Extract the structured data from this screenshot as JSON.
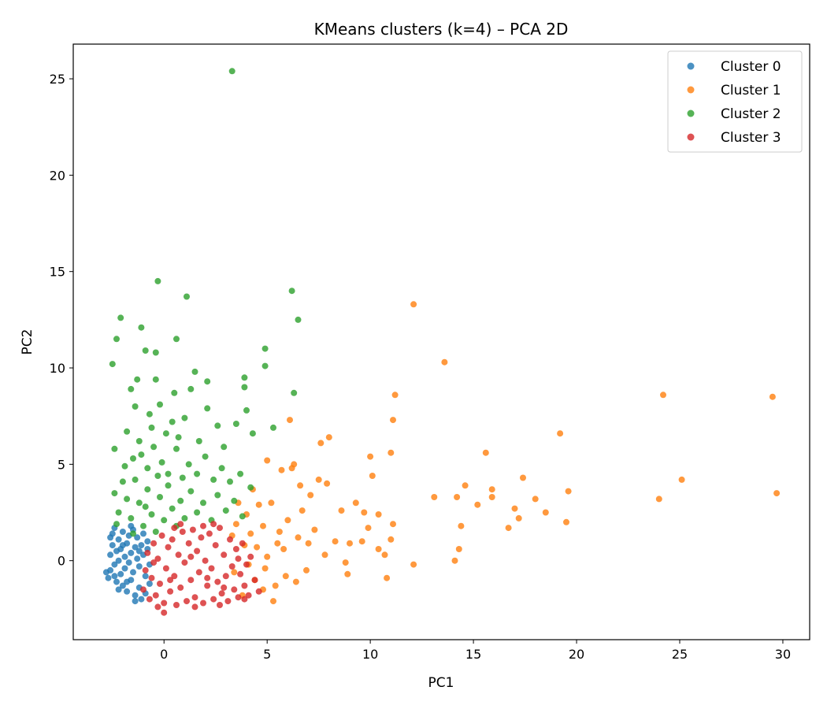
{
  "chart_data": {
    "type": "scatter",
    "title": "KMeans clusters (k=4) – PCA 2D",
    "xlabel": "PC1",
    "ylabel": "PC2",
    "xlim": [
      -4.4,
      31.3
    ],
    "ylim": [
      -4.1,
      26.8
    ],
    "xticks": [
      0,
      5,
      10,
      15,
      20,
      25,
      30
    ],
    "yticks": [
      0,
      5,
      10,
      15,
      20,
      25
    ],
    "grid": false,
    "legend_position": "top-right",
    "series": [
      {
        "name": "Cluster 0",
        "color": "#1f77b4",
        "points": [
          [
            -2.7,
            -0.9
          ],
          [
            -2.6,
            -0.5
          ],
          [
            -2.6,
            0.3
          ],
          [
            -2.5,
            0.8
          ],
          [
            -2.5,
            1.4
          ],
          [
            -2.4,
            1.7
          ],
          [
            -2.4,
            -0.2
          ],
          [
            -2.3,
            0.5
          ],
          [
            -2.3,
            -1.1
          ],
          [
            -2.2,
            1.1
          ],
          [
            -2.2,
            0.0
          ],
          [
            -2.1,
            -0.7
          ],
          [
            -2.1,
            0.6
          ],
          [
            -2.0,
            1.5
          ],
          [
            -2.0,
            -1.3
          ],
          [
            -1.9,
            0.2
          ],
          [
            -1.9,
            -0.4
          ],
          [
            -1.8,
            0.9
          ],
          [
            -1.8,
            -1.6
          ],
          [
            -1.7,
            1.3
          ],
          [
            -1.7,
            -0.1
          ],
          [
            -1.6,
            0.4
          ],
          [
            -1.6,
            -1.0
          ],
          [
            -1.5,
            1.6
          ],
          [
            -1.5,
            -0.6
          ],
          [
            -1.4,
            0.7
          ],
          [
            -1.4,
            -1.8
          ],
          [
            -1.3,
            0.1
          ],
          [
            -1.3,
            1.2
          ],
          [
            -1.2,
            -0.3
          ],
          [
            -1.2,
            -1.4
          ],
          [
            -1.1,
            0.8
          ],
          [
            -1.1,
            -2.0
          ],
          [
            -1.0,
            1.4
          ],
          [
            -1.0,
            0.3
          ],
          [
            -0.9,
            -0.8
          ],
          [
            -0.9,
            -1.7
          ],
          [
            -0.8,
            0.6
          ],
          [
            -0.8,
            1.0
          ],
          [
            -0.7,
            -0.2
          ],
          [
            -0.7,
            -1.2
          ],
          [
            -2.8,
            -0.6
          ],
          [
            -2.6,
            1.2
          ],
          [
            -2.4,
            -0.8
          ],
          [
            -2.2,
            -1.5
          ],
          [
            -2.0,
            0.8
          ],
          [
            -1.8,
            -1.1
          ],
          [
            -1.6,
            1.8
          ],
          [
            -1.4,
            -2.1
          ],
          [
            -1.2,
            0.5
          ]
        ]
      },
      {
        "name": "Cluster 1",
        "color": "#ff7f0e",
        "points": [
          [
            29.5,
            8.5
          ],
          [
            29.7,
            3.5
          ],
          [
            25.1,
            4.2
          ],
          [
            24.2,
            8.6
          ],
          [
            24.0,
            3.2
          ],
          [
            19.6,
            3.6
          ],
          [
            19.5,
            2.0
          ],
          [
            19.2,
            6.6
          ],
          [
            18.5,
            2.5
          ],
          [
            18.0,
            3.2
          ],
          [
            17.4,
            4.3
          ],
          [
            17.2,
            2.2
          ],
          [
            17.0,
            2.7
          ],
          [
            16.7,
            1.7
          ],
          [
            15.9,
            3.7
          ],
          [
            15.9,
            3.3
          ],
          [
            15.6,
            5.6
          ],
          [
            15.2,
            2.9
          ],
          [
            14.6,
            3.9
          ],
          [
            14.4,
            1.8
          ],
          [
            14.3,
            0.6
          ],
          [
            14.2,
            3.3
          ],
          [
            14.1,
            0.0
          ],
          [
            13.6,
            10.3
          ],
          [
            13.1,
            3.3
          ],
          [
            12.1,
            13.3
          ],
          [
            12.1,
            -0.2
          ],
          [
            11.2,
            8.6
          ],
          [
            11.1,
            7.3
          ],
          [
            11.1,
            1.9
          ],
          [
            11.0,
            5.6
          ],
          [
            11.0,
            1.1
          ],
          [
            10.8,
            -0.9
          ],
          [
            10.7,
            0.3
          ],
          [
            10.4,
            2.4
          ],
          [
            10.4,
            0.6
          ],
          [
            10.1,
            4.4
          ],
          [
            10.0,
            5.4
          ],
          [
            9.7,
            2.5
          ],
          [
            9.6,
            1.0
          ],
          [
            9.3,
            3.0
          ],
          [
            9.0,
            0.9
          ],
          [
            8.8,
            -0.1
          ],
          [
            8.6,
            2.6
          ],
          [
            8.3,
            1.0
          ],
          [
            8.0,
            6.4
          ],
          [
            7.9,
            4.0
          ],
          [
            7.6,
            6.1
          ],
          [
            7.5,
            4.2
          ],
          [
            7.3,
            1.6
          ],
          [
            7.1,
            3.4
          ],
          [
            7.0,
            0.9
          ],
          [
            6.9,
            -0.5
          ],
          [
            6.7,
            2.6
          ],
          [
            6.6,
            3.9
          ],
          [
            6.5,
            1.2
          ],
          [
            6.3,
            5.0
          ],
          [
            6.2,
            4.8
          ],
          [
            6.1,
            7.3
          ],
          [
            6.0,
            2.1
          ],
          [
            5.9,
            -0.8
          ],
          [
            5.8,
            0.6
          ],
          [
            5.7,
            4.7
          ],
          [
            5.6,
            1.5
          ],
          [
            5.4,
            -1.3
          ],
          [
            5.3,
            -2.1
          ],
          [
            5.2,
            3.0
          ],
          [
            5.0,
            5.2
          ],
          [
            5.0,
            0.2
          ],
          [
            4.9,
            -0.4
          ],
          [
            4.8,
            1.8
          ],
          [
            4.8,
            -1.5
          ],
          [
            4.6,
            2.9
          ],
          [
            4.5,
            0.7
          ],
          [
            4.4,
            -1.0
          ],
          [
            4.3,
            3.7
          ],
          [
            4.2,
            1.4
          ],
          [
            4.1,
            -0.2
          ],
          [
            4.0,
            2.4
          ],
          [
            3.9,
            0.8
          ],
          [
            3.8,
            -1.8
          ],
          [
            3.6,
            3.0
          ],
          [
            3.5,
            1.9
          ],
          [
            3.4,
            -0.6
          ],
          [
            3.3,
            1.3
          ],
          [
            7.8,
            0.3
          ],
          [
            8.9,
            -0.7
          ],
          [
            9.9,
            1.7
          ],
          [
            6.4,
            -1.1
          ],
          [
            5.5,
            0.9
          ]
        ]
      },
      {
        "name": "Cluster 2",
        "color": "#2ca02c",
        "points": [
          [
            3.3,
            25.4
          ],
          [
            -0.3,
            14.5
          ],
          [
            1.1,
            13.7
          ],
          [
            6.2,
            14.0
          ],
          [
            -2.1,
            12.6
          ],
          [
            -1.1,
            12.1
          ],
          [
            6.5,
            12.5
          ],
          [
            -2.3,
            11.5
          ],
          [
            0.6,
            11.5
          ],
          [
            -2.5,
            10.2
          ],
          [
            -0.9,
            10.9
          ],
          [
            -0.4,
            10.8
          ],
          [
            4.9,
            11.0
          ],
          [
            4.9,
            10.1
          ],
          [
            1.5,
            9.8
          ],
          [
            2.1,
            9.3
          ],
          [
            3.9,
            9.5
          ],
          [
            3.9,
            9.0
          ],
          [
            -1.3,
            9.4
          ],
          [
            -1.6,
            8.9
          ],
          [
            -0.4,
            9.4
          ],
          [
            0.5,
            8.7
          ],
          [
            1.3,
            8.9
          ],
          [
            6.3,
            8.7
          ],
          [
            -1.4,
            8.0
          ],
          [
            -0.2,
            8.1
          ],
          [
            2.1,
            7.9
          ],
          [
            4.0,
            7.8
          ],
          [
            -1.8,
            6.7
          ],
          [
            -0.7,
            7.6
          ],
          [
            0.4,
            7.2
          ],
          [
            1.0,
            7.4
          ],
          [
            2.6,
            7.0
          ],
          [
            3.5,
            7.1
          ],
          [
            4.3,
            6.6
          ],
          [
            5.3,
            6.9
          ],
          [
            -2.4,
            5.8
          ],
          [
            -1.9,
            4.9
          ],
          [
            -1.5,
            5.3
          ],
          [
            -1.2,
            6.2
          ],
          [
            -0.8,
            4.8
          ],
          [
            -0.5,
            5.9
          ],
          [
            -0.1,
            5.1
          ],
          [
            0.2,
            4.5
          ],
          [
            0.6,
            5.8
          ],
          [
            0.9,
            4.3
          ],
          [
            1.2,
            5.0
          ],
          [
            1.6,
            4.5
          ],
          [
            2.0,
            5.4
          ],
          [
            2.4,
            4.2
          ],
          [
            2.8,
            4.8
          ],
          [
            3.2,
            4.1
          ],
          [
            3.7,
            4.5
          ],
          [
            4.2,
            3.8
          ],
          [
            -2.4,
            3.5
          ],
          [
            -2.2,
            2.5
          ],
          [
            -2.0,
            4.1
          ],
          [
            -1.8,
            3.2
          ],
          [
            -1.6,
            2.2
          ],
          [
            -1.4,
            4.2
          ],
          [
            -1.2,
            3.0
          ],
          [
            -1.0,
            1.8
          ],
          [
            -0.8,
            3.7
          ],
          [
            -0.6,
            2.4
          ],
          [
            -0.4,
            1.5
          ],
          [
            -0.2,
            3.3
          ],
          [
            0.0,
            2.1
          ],
          [
            0.2,
            3.9
          ],
          [
            0.4,
            2.7
          ],
          [
            0.6,
            1.8
          ],
          [
            0.8,
            3.1
          ],
          [
            1.0,
            2.2
          ],
          [
            1.3,
            3.6
          ],
          [
            1.6,
            2.5
          ],
          [
            1.9,
            3.0
          ],
          [
            2.3,
            2.1
          ],
          [
            2.6,
            3.4
          ],
          [
            3.0,
            2.6
          ],
          [
            3.4,
            3.1
          ],
          [
            3.8,
            2.3
          ],
          [
            -2.3,
            1.9
          ],
          [
            -1.5,
            1.4
          ],
          [
            -0.9,
            2.8
          ],
          [
            -0.3,
            4.4
          ],
          [
            0.7,
            6.4
          ],
          [
            1.7,
            6.2
          ],
          [
            2.9,
            5.9
          ],
          [
            0.1,
            6.6
          ],
          [
            -0.6,
            6.9
          ],
          [
            -1.1,
            5.5
          ]
        ]
      },
      {
        "name": "Cluster 3",
        "color": "#d62728",
        "points": [
          [
            -1.0,
            -1.5
          ],
          [
            -0.9,
            -0.5
          ],
          [
            -0.8,
            0.4
          ],
          [
            -0.7,
            -2.0
          ],
          [
            -0.6,
            -0.9
          ],
          [
            -0.5,
            0.9
          ],
          [
            -0.4,
            -1.8
          ],
          [
            -0.3,
            0.1
          ],
          [
            -0.2,
            -1.2
          ],
          [
            -0.1,
            1.3
          ],
          [
            0.0,
            -2.2
          ],
          [
            0.1,
            -0.4
          ],
          [
            0.2,
            0.7
          ],
          [
            0.3,
            -1.6
          ],
          [
            0.4,
            1.1
          ],
          [
            0.5,
            -0.8
          ],
          [
            0.6,
            -2.3
          ],
          [
            0.7,
            0.3
          ],
          [
            0.8,
            -1.4
          ],
          [
            0.9,
            1.5
          ],
          [
            1.0,
            -0.1
          ],
          [
            1.1,
            -2.1
          ],
          [
            1.2,
            0.9
          ],
          [
            1.3,
            -1.0
          ],
          [
            1.4,
            1.6
          ],
          [
            1.5,
            -1.9
          ],
          [
            1.6,
            0.5
          ],
          [
            1.7,
            -0.6
          ],
          [
            1.8,
            1.2
          ],
          [
            1.9,
            -2.2
          ],
          [
            2.0,
            0.0
          ],
          [
            2.1,
            -1.3
          ],
          [
            2.2,
            1.4
          ],
          [
            2.3,
            -0.4
          ],
          [
            2.4,
            -2.0
          ],
          [
            2.5,
            0.8
          ],
          [
            2.6,
            -1.1
          ],
          [
            2.7,
            1.7
          ],
          [
            2.8,
            -1.7
          ],
          [
            2.9,
            0.3
          ],
          [
            3.0,
            -0.8
          ],
          [
            3.1,
            -2.1
          ],
          [
            3.2,
            1.1
          ],
          [
            3.3,
            -0.3
          ],
          [
            3.4,
            -1.5
          ],
          [
            3.5,
            0.6
          ],
          [
            3.6,
            -1.9
          ],
          [
            3.7,
            -0.7
          ],
          [
            3.8,
            0.9
          ],
          [
            3.9,
            -1.3
          ],
          [
            4.0,
            -0.2
          ],
          [
            4.1,
            -1.8
          ],
          [
            4.2,
            0.2
          ],
          [
            4.4,
            -1.0
          ],
          [
            4.6,
            -1.6
          ],
          [
            0.0,
            -2.7
          ],
          [
            -0.5,
            -0.1
          ],
          [
            0.3,
            -1.0
          ],
          [
            1.3,
            0.2
          ],
          [
            2.1,
            -0.9
          ],
          [
            2.9,
            -1.4
          ],
          [
            3.6,
            0.1
          ],
          [
            0.8,
            1.9
          ],
          [
            1.9,
            1.8
          ],
          [
            -0.3,
            -2.4
          ],
          [
            1.5,
            -2.4
          ],
          [
            2.7,
            -2.3
          ],
          [
            3.9,
            -2.0
          ],
          [
            0.5,
            1.7
          ],
          [
            2.4,
            1.9
          ]
        ]
      }
    ]
  }
}
